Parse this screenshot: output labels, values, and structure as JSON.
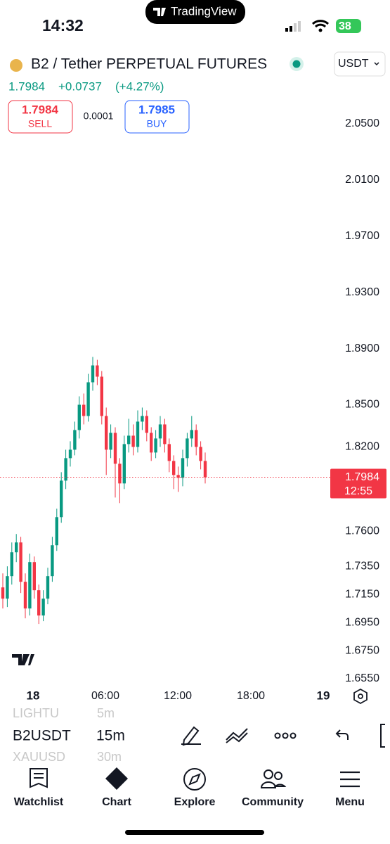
{
  "status_bar": {
    "time": "14:32",
    "app": "TradingView",
    "battery": "38"
  },
  "header": {
    "symbol": "B2 / Tether PERPETUAL FUTURES",
    "currency": "USDT",
    "price": "1.7984",
    "change": "+0.0737",
    "change_pct": "(+4.27%)",
    "sell": {
      "price": "1.7984",
      "label": "SELL"
    },
    "spread": "0.0001",
    "buy": {
      "price": "1.7985",
      "label": "BUY"
    }
  },
  "chart_data": {
    "type": "candlestick",
    "candles": [
      {
        "open": 1.72,
        "high": 1.73,
        "low": 1.705,
        "close": 1.712
      },
      {
        "open": 1.712,
        "high": 1.735,
        "low": 1.706,
        "close": 1.728
      },
      {
        "open": 1.728,
        "high": 1.752,
        "low": 1.722,
        "close": 1.745
      },
      {
        "open": 1.745,
        "high": 1.758,
        "low": 1.738,
        "close": 1.752
      },
      {
        "open": 1.752,
        "high": 1.756,
        "low": 1.716,
        "close": 1.724
      },
      {
        "open": 1.724,
        "high": 1.73,
        "low": 1.698,
        "close": 1.705
      },
      {
        "open": 1.705,
        "high": 1.744,
        "low": 1.7,
        "close": 1.738
      },
      {
        "open": 1.738,
        "high": 1.742,
        "low": 1.712,
        "close": 1.718
      },
      {
        "open": 1.718,
        "high": 1.722,
        "low": 1.694,
        "close": 1.7
      },
      {
        "open": 1.7,
        "high": 1.718,
        "low": 1.696,
        "close": 1.712
      },
      {
        "open": 1.712,
        "high": 1.734,
        "low": 1.708,
        "close": 1.728
      },
      {
        "open": 1.728,
        "high": 1.756,
        "low": 1.724,
        "close": 1.75
      },
      {
        "open": 1.75,
        "high": 1.776,
        "low": 1.746,
        "close": 1.77
      },
      {
        "open": 1.77,
        "high": 1.802,
        "low": 1.766,
        "close": 1.796
      },
      {
        "open": 1.796,
        "high": 1.818,
        "low": 1.79,
        "close": 1.812
      },
      {
        "open": 1.812,
        "high": 1.824,
        "low": 1.806,
        "close": 1.818
      },
      {
        "open": 1.818,
        "high": 1.838,
        "low": 1.814,
        "close": 1.832
      },
      {
        "open": 1.832,
        "high": 1.856,
        "low": 1.826,
        "close": 1.85
      },
      {
        "open": 1.85,
        "high": 1.858,
        "low": 1.836,
        "close": 1.842
      },
      {
        "open": 1.842,
        "high": 1.872,
        "low": 1.838,
        "close": 1.866
      },
      {
        "open": 1.866,
        "high": 1.884,
        "low": 1.86,
        "close": 1.878
      },
      {
        "open": 1.878,
        "high": 1.882,
        "low": 1.864,
        "close": 1.87
      },
      {
        "open": 1.87,
        "high": 1.874,
        "low": 1.836,
        "close": 1.842
      },
      {
        "open": 1.842,
        "high": 1.848,
        "low": 1.8,
        "close": 1.818
      },
      {
        "open": 1.818,
        "high": 1.836,
        "low": 1.812,
        "close": 1.83
      },
      {
        "open": 1.83,
        "high": 1.834,
        "low": 1.784,
        "close": 1.808
      },
      {
        "open": 1.808,
        "high": 1.812,
        "low": 1.78,
        "close": 1.794
      },
      {
        "open": 1.794,
        "high": 1.828,
        "low": 1.79,
        "close": 1.822
      },
      {
        "open": 1.822,
        "high": 1.84,
        "low": 1.816,
        "close": 1.828
      },
      {
        "open": 1.828,
        "high": 1.836,
        "low": 1.814,
        "close": 1.82
      },
      {
        "open": 1.82,
        "high": 1.846,
        "low": 1.816,
        "close": 1.838
      },
      {
        "open": 1.838,
        "high": 1.848,
        "low": 1.832,
        "close": 1.842
      },
      {
        "open": 1.842,
        "high": 1.846,
        "low": 1.824,
        "close": 1.83
      },
      {
        "open": 1.83,
        "high": 1.834,
        "low": 1.81,
        "close": 1.816
      },
      {
        "open": 1.816,
        "high": 1.832,
        "low": 1.812,
        "close": 1.826
      },
      {
        "open": 1.826,
        "high": 1.842,
        "low": 1.82,
        "close": 1.836
      },
      {
        "open": 1.836,
        "high": 1.84,
        "low": 1.816,
        "close": 1.822
      },
      {
        "open": 1.822,
        "high": 1.826,
        "low": 1.802,
        "close": 1.81
      },
      {
        "open": 1.81,
        "high": 1.814,
        "low": 1.79,
        "close": 1.8
      },
      {
        "open": 1.8,
        "high": 1.806,
        "low": 1.788,
        "close": 1.798
      },
      {
        "open": 1.798,
        "high": 1.818,
        "low": 1.792,
        "close": 1.812
      },
      {
        "open": 1.812,
        "high": 1.83,
        "low": 1.806,
        "close": 1.826
      },
      {
        "open": 1.826,
        "high": 1.842,
        "low": 1.82,
        "close": 1.832
      },
      {
        "open": 1.832,
        "high": 1.836,
        "low": 1.814,
        "close": 1.82
      },
      {
        "open": 1.82,
        "high": 1.824,
        "low": 1.804,
        "close": 1.81
      },
      {
        "open": 1.81,
        "high": 1.816,
        "low": 1.794,
        "close": 1.7984
      }
    ],
    "up_color": "#089981",
    "down_color": "#f23645",
    "ylim": [
      1.65,
      2.07
    ],
    "yticks": [
      {
        "value": 2.05,
        "label": "2.0500"
      },
      {
        "value": 2.01,
        "label": "2.0100"
      },
      {
        "value": 1.97,
        "label": "1.9700"
      },
      {
        "value": 1.93,
        "label": "1.9300"
      },
      {
        "value": 1.89,
        "label": "1.8900"
      },
      {
        "value": 1.85,
        "label": "1.8500"
      },
      {
        "value": 1.82,
        "label": "1.8200"
      },
      {
        "value": 1.76,
        "label": "1.7600"
      },
      {
        "value": 1.735,
        "label": "1.7350"
      },
      {
        "value": 1.715,
        "label": "1.7150"
      },
      {
        "value": 1.695,
        "label": "1.6950"
      },
      {
        "value": 1.675,
        "label": "1.6750"
      },
      {
        "value": 1.655,
        "label": "1.6550"
      }
    ],
    "x_labels": [
      "18",
      "06:00",
      "12:00",
      "18:00",
      "19"
    ],
    "price_tag": {
      "value": 1.7984,
      "label": "1.7984",
      "countdown": "12:55"
    }
  },
  "toolbar": {
    "symbols": [
      "LIGHTU",
      "B2USDT",
      "XAUUSD"
    ],
    "intervals": [
      "5m",
      "15m",
      "30m"
    ]
  },
  "nav": [
    "Watchlist",
    "Chart",
    "Explore",
    "Community",
    "Menu"
  ]
}
